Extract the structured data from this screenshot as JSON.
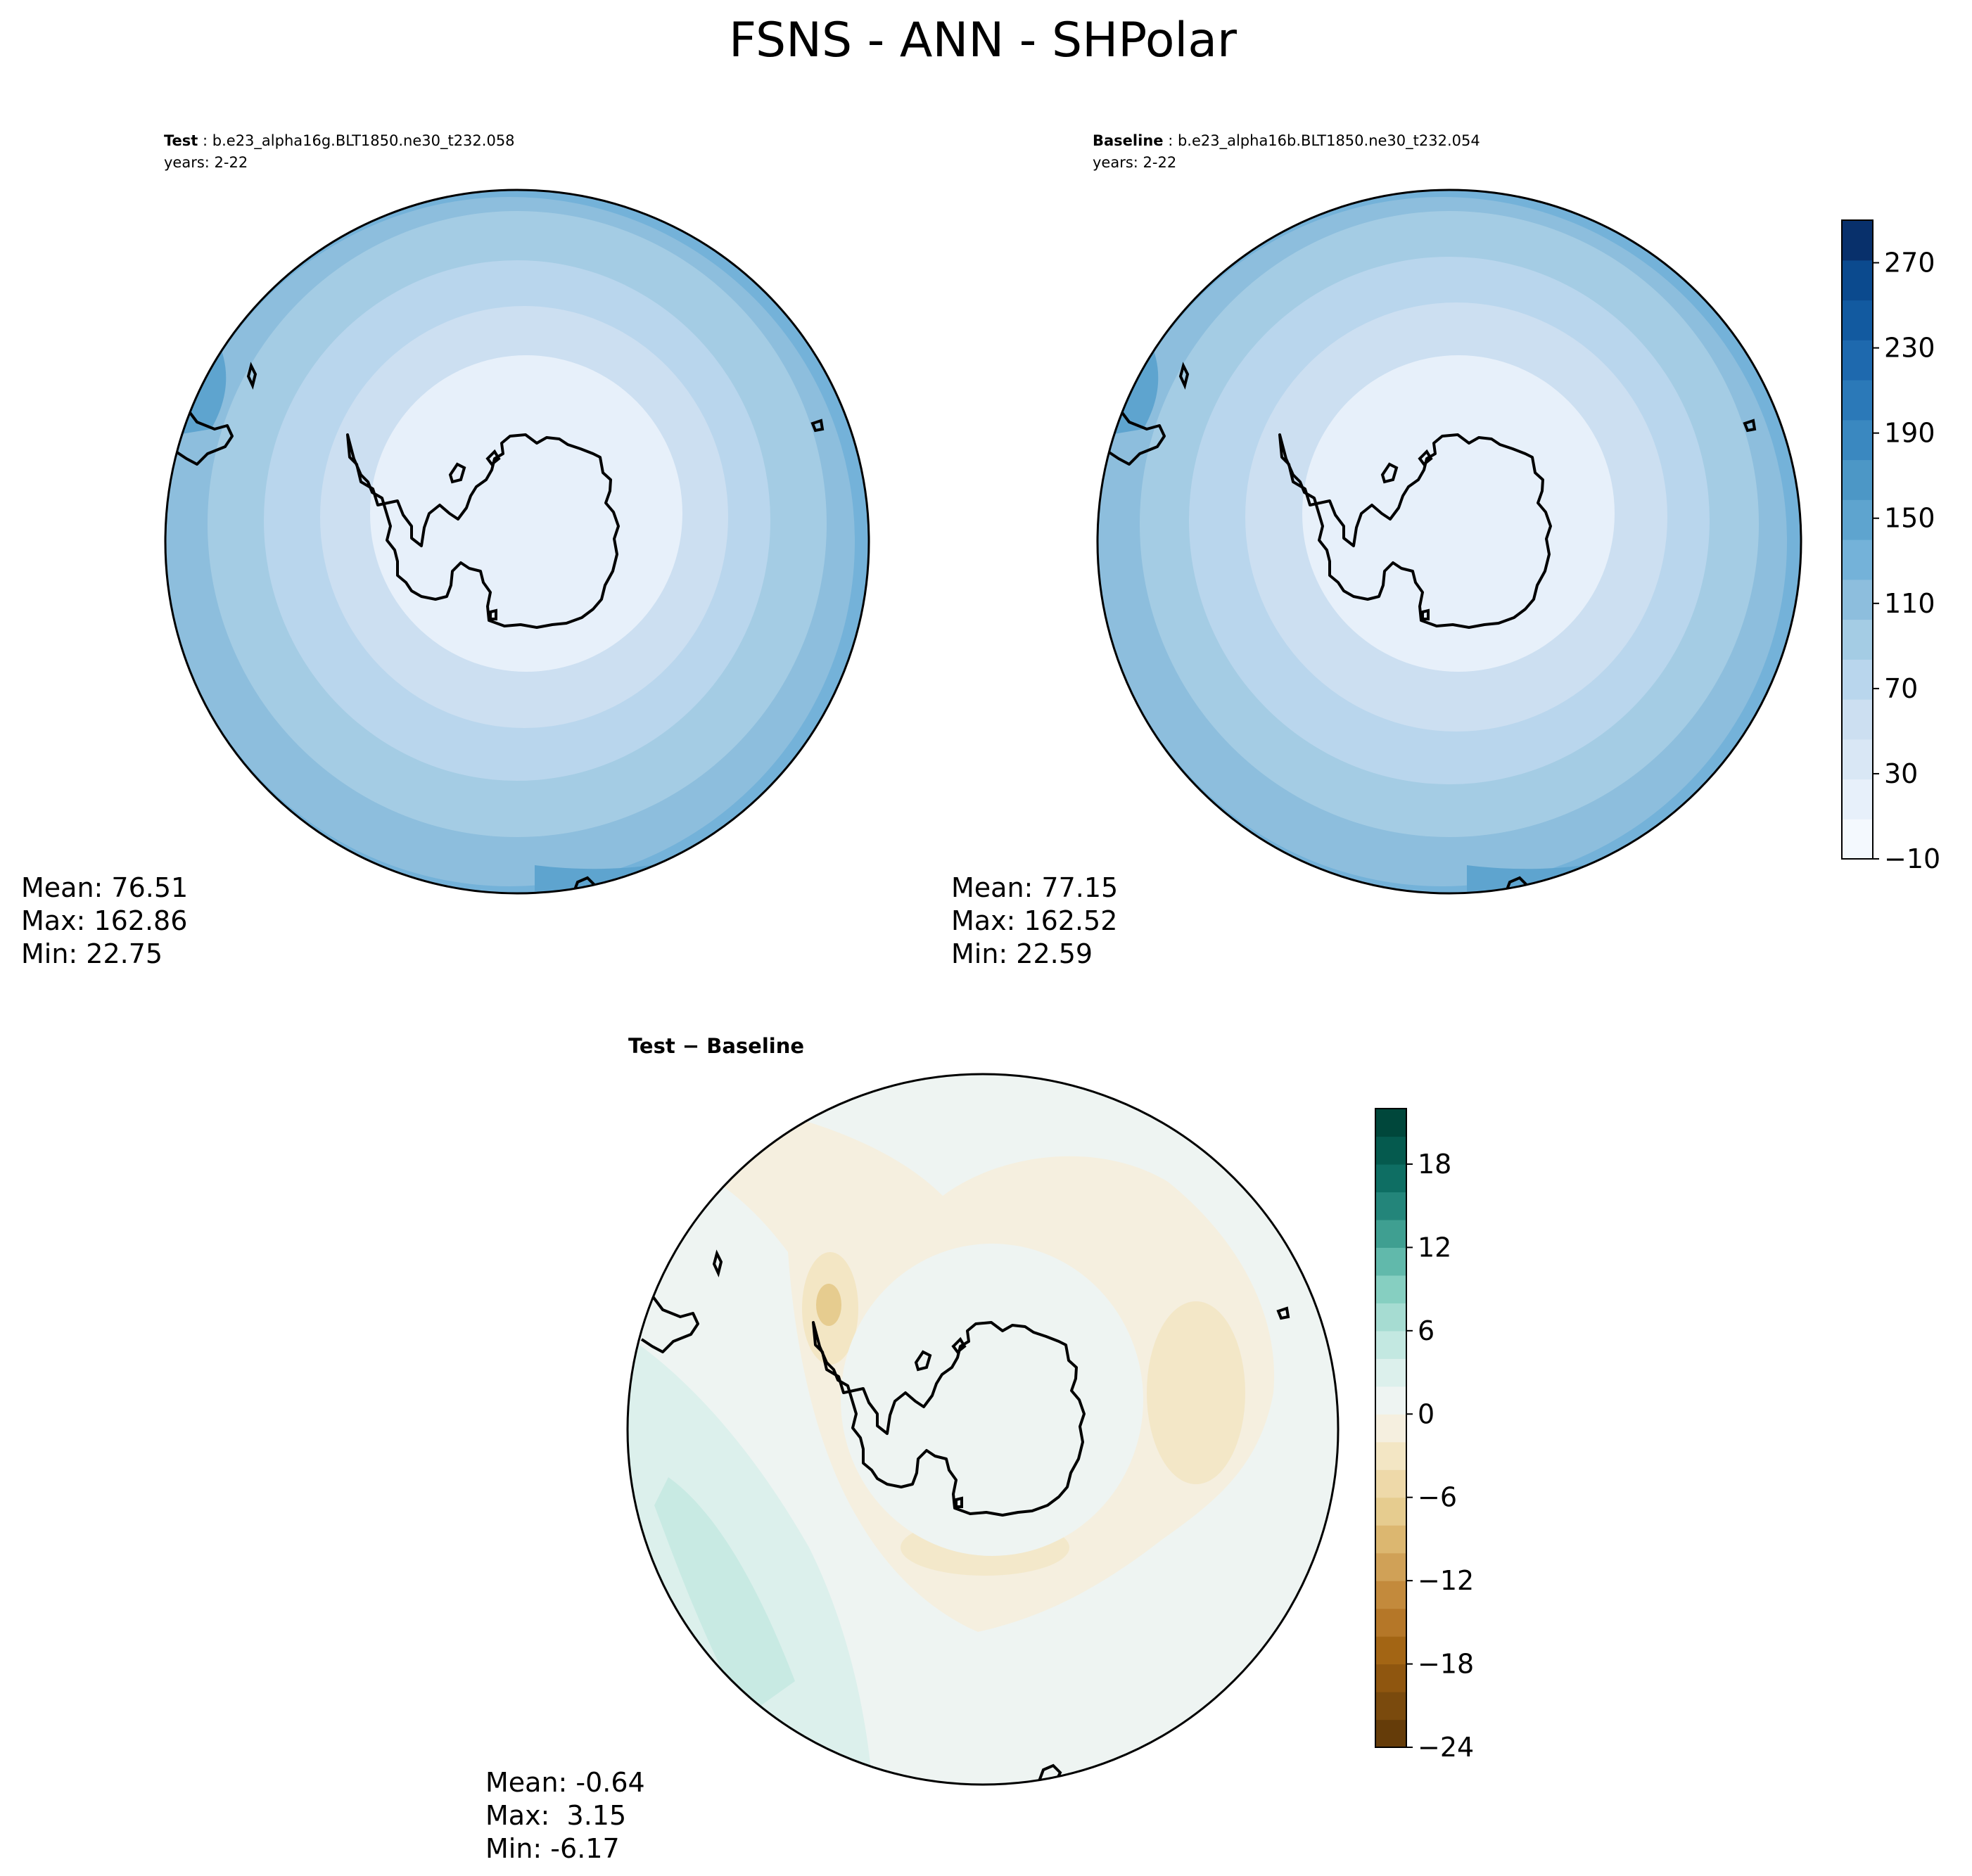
{
  "figure": {
    "title": "FSNS - ANN - SHPolar"
  },
  "panels": [
    {
      "id": "test",
      "label": "Test",
      "separator": " : ",
      "name": "b.e23_alpha16g.BLT1850.ne30_t232.058",
      "years": "years: 2-22",
      "stats": [
        "Mean: 76.51",
        "Max: 162.86",
        "Min: 22.75"
      ]
    },
    {
      "id": "baseline",
      "label": "Baseline",
      "separator": " : ",
      "name": "b.e23_alpha16b.BLT1850.ne30_t232.054",
      "years": "years: 2-22",
      "stats": [
        "Mean: 77.15",
        "Max: 162.52",
        "Min: 22.59"
      ]
    },
    {
      "id": "diff",
      "label": "Test − Baseline",
      "stats": [
        "Mean: -0.64",
        "Max:  3.15",
        "Min: -6.17"
      ]
    }
  ],
  "colorbars": {
    "main": {
      "ticks": [
        "−10",
        "30",
        "70",
        "110",
        "150",
        "190",
        "230",
        "270"
      ],
      "levels": [
        -10,
        10,
        30,
        50,
        70,
        90,
        110,
        130,
        150,
        170,
        190,
        210,
        230,
        250,
        270,
        290
      ],
      "colors": [
        "#f4f9fe",
        "#e7f0fa",
        "#d9e7f5",
        "#ccdff1",
        "#b9d6ed",
        "#a4cce4",
        "#8dbedd",
        "#74b2d9",
        "#5ea4cf",
        "#4c97c6",
        "#3a88c0",
        "#2b79b8",
        "#1e69ae",
        "#125aa0",
        "#0b4a8e",
        "#08306b"
      ]
    },
    "diff": {
      "ticks": [
        "−24",
        "−18",
        "−12",
        "−6",
        "0",
        "6",
        "12",
        "18"
      ],
      "levels": [
        -24,
        -22,
        -20,
        -18,
        -16,
        -14,
        -12,
        -10,
        -8,
        -6,
        -4,
        -2,
        0,
        2,
        4,
        6,
        8,
        10,
        12,
        14,
        16,
        18,
        20,
        22
      ],
      "colors": [
        "#653c09",
        "#7a4a0d",
        "#8f560f",
        "#a36514",
        "#b57728",
        "#c38a3c",
        "#d0a157",
        "#dcb770",
        "#e6cc8f",
        "#eed9a9",
        "#f3e6c4",
        "#f5efdf",
        "#eef4f2",
        "#dcf0ec",
        "#c3e8e1",
        "#a6dcd2",
        "#86cfc1",
        "#61b9ab",
        "#3f9f91",
        "#23857a",
        "#0e6e63",
        "#055a4e",
        "#00473b"
      ]
    }
  }
}
